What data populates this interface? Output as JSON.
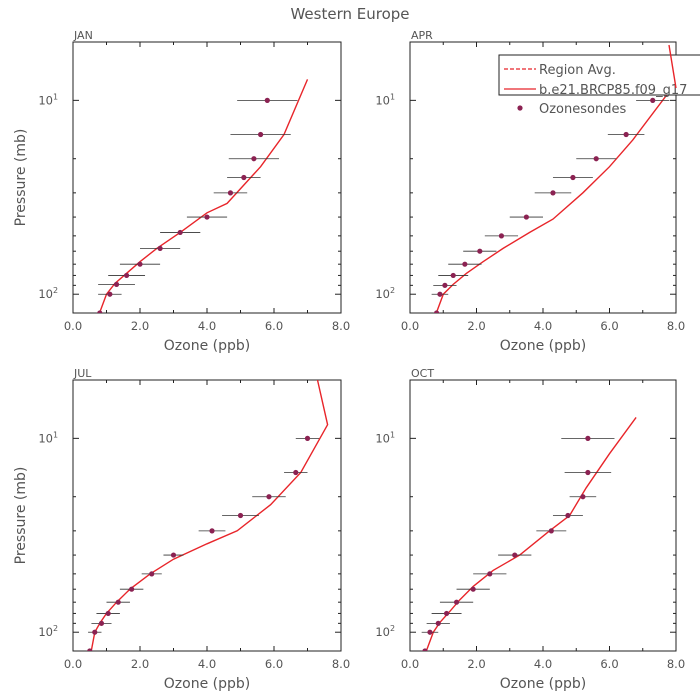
{
  "figure": {
    "title": "Western Europe"
  },
  "legend": {
    "placement": "top-right of APR panel",
    "entries": [
      {
        "label": "Region Avg.",
        "style": "dashed",
        "color": "#e8252a"
      },
      {
        "label": "b.e21.BRCP85.f09_g17",
        "style": "solid",
        "color": "#e8252a"
      },
      {
        "label": "Ozonesondes",
        "style": "dot",
        "color": "#8b2252"
      }
    ]
  },
  "colors": {
    "model": "#e8252a",
    "sonde": "#8b2252",
    "errorbar": "#333333",
    "axis": "#222222",
    "text": "#555555"
  },
  "chart_data": [
    {
      "type": "line",
      "panel": "JAN",
      "xlabel": "Ozone (ppb)",
      "ylabel": "Pressure (mb)",
      "xlim": [
        0,
        8
      ],
      "ylim": [
        125,
        5
      ],
      "yscale": "log",
      "xticks": [
        "0.0",
        "2.0",
        "4.0",
        "6.0",
        "8.0"
      ],
      "yticks": [
        {
          "value": 10,
          "label": "10",
          "exp": "1"
        },
        {
          "value": 100,
          "label": "10",
          "exp": "2"
        }
      ],
      "grid": false,
      "series": [
        {
          "name": "b.e21.BRCP85.f09_g17",
          "kind": "line",
          "x": [
            0.8,
            1.0,
            1.25,
            1.6,
            2.0,
            2.5,
            3.2,
            4.0,
            4.6,
            5.6,
            6.3,
            7.0
          ],
          "y": [
            124,
            100,
            88,
            78,
            68,
            58,
            48,
            38,
            34,
            22,
            15,
            7.8
          ]
        },
        {
          "name": "Ozonesondes",
          "kind": "points",
          "x": [
            0.8,
            1.1,
            1.3,
            1.6,
            2.0,
            2.6,
            3.2,
            4.0,
            4.7,
            5.1,
            5.4,
            5.6,
            5.8
          ],
          "y": [
            125,
            100,
            89,
            80,
            70,
            58,
            48,
            40,
            30,
            25,
            20,
            15,
            10
          ],
          "xerr": [
            0.1,
            0.35,
            0.55,
            0.55,
            0.6,
            0.6,
            0.6,
            0.6,
            0.5,
            0.5,
            0.75,
            0.9,
            0.9
          ]
        }
      ]
    },
    {
      "type": "line",
      "panel": "APR",
      "xlabel": "Ozone (ppb)",
      "ylabel": "",
      "xlim": [
        0,
        8
      ],
      "ylim": [
        125,
        5
      ],
      "yscale": "log",
      "xticks": [
        "0.0",
        "2.0",
        "4.0",
        "6.0",
        "8.0"
      ],
      "yticks": [
        {
          "value": 10,
          "label": "10",
          "exp": "1"
        },
        {
          "value": 100,
          "label": "10",
          "exp": "2"
        }
      ],
      "grid": false,
      "series": [
        {
          "name": "b.e21.BRCP85.f09_g17",
          "kind": "line",
          "x": [
            0.8,
            1.0,
            1.3,
            1.7,
            2.2,
            2.8,
            3.6,
            4.3,
            5.2,
            6.0,
            6.7,
            7.8,
            8.1
          ],
          "y": [
            124,
            100,
            89,
            78,
            68,
            58,
            48,
            41,
            30,
            22,
            16,
            9,
            6
          ]
        },
        {
          "name": "Ozonesondes",
          "kind": "points",
          "x": [
            0.8,
            0.9,
            1.05,
            1.3,
            1.65,
            2.1,
            2.75,
            3.5,
            4.3,
            4.9,
            5.6,
            6.5,
            7.3
          ],
          "y": [
            125,
            100,
            90,
            80,
            70,
            60,
            50,
            40,
            30,
            25,
            20,
            15,
            10
          ],
          "xerr": [
            0.1,
            0.25,
            0.35,
            0.45,
            0.5,
            0.5,
            0.5,
            0.5,
            0.55,
            0.6,
            0.6,
            0.55,
            0.5
          ]
        }
      ]
    },
    {
      "type": "line",
      "panel": "JUL",
      "xlabel": "Ozone (ppb)",
      "ylabel": "Pressure (mb)",
      "xlim": [
        0,
        8
      ],
      "ylim": [
        125,
        5
      ],
      "yscale": "log",
      "xticks": [
        "0.0",
        "2.0",
        "4.0",
        "6.0",
        "8.0"
      ],
      "yticks": [
        {
          "value": 10,
          "label": "10",
          "exp": "1"
        },
        {
          "value": 100,
          "label": "10",
          "exp": "2"
        }
      ],
      "grid": false,
      "series": [
        {
          "name": "b.e21.BRCP85.f09_g17",
          "kind": "line",
          "x": [
            0.55,
            0.65,
            0.8,
            1.0,
            1.3,
            1.7,
            2.3,
            3.0,
            4.0,
            4.9,
            5.9,
            6.8,
            7.6,
            7.3
          ],
          "y": [
            124,
            100,
            90,
            80,
            70,
            60,
            50,
            42,
            35,
            30,
            22,
            15,
            8.5,
            5
          ]
        },
        {
          "name": "Ozonesondes",
          "kind": "points",
          "x": [
            0.5,
            0.65,
            0.85,
            1.05,
            1.35,
            1.75,
            2.35,
            3.0,
            4.15,
            5.0,
            5.85,
            6.65,
            7.0
          ],
          "y": [
            125,
            100,
            90,
            80,
            70,
            60,
            50,
            40,
            30,
            25,
            20,
            15,
            10
          ],
          "xerr": [
            0.1,
            0.2,
            0.3,
            0.35,
            0.35,
            0.35,
            0.3,
            0.3,
            0.4,
            0.55,
            0.5,
            0.35,
            0.35
          ]
        }
      ]
    },
    {
      "type": "line",
      "panel": "OCT",
      "xlabel": "Ozone (ppb)",
      "ylabel": "",
      "xlim": [
        0,
        8
      ],
      "ylim": [
        125,
        5
      ],
      "yscale": "log",
      "xticks": [
        "0.0",
        "2.0",
        "4.0",
        "6.0",
        "8.0"
      ],
      "yticks": [
        {
          "value": 10,
          "label": "10",
          "exp": "1"
        },
        {
          "value": 100,
          "label": "10",
          "exp": "2"
        }
      ],
      "grid": false,
      "series": [
        {
          "name": "b.e21.BRCP85.f09_g17",
          "kind": "line",
          "x": [
            0.5,
            0.7,
            0.9,
            1.2,
            1.5,
            1.9,
            2.5,
            3.3,
            4.2,
            4.8,
            5.3,
            6.0,
            6.8
          ],
          "y": [
            124,
            100,
            89,
            78,
            68,
            58,
            48,
            40,
            30,
            25,
            18,
            12,
            7.8
          ]
        },
        {
          "name": "Ozonesondes",
          "kind": "points",
          "x": [
            0.45,
            0.6,
            0.85,
            1.1,
            1.4,
            1.9,
            2.4,
            3.15,
            4.25,
            4.75,
            5.2,
            5.35,
            5.35
          ],
          "y": [
            125,
            100,
            90,
            80,
            70,
            60,
            50,
            40,
            30,
            25,
            20,
            15,
            10
          ],
          "xerr": [
            0.1,
            0.25,
            0.35,
            0.45,
            0.5,
            0.5,
            0.5,
            0.5,
            0.45,
            0.45,
            0.4,
            0.7,
            0.8
          ]
        }
      ]
    }
  ]
}
